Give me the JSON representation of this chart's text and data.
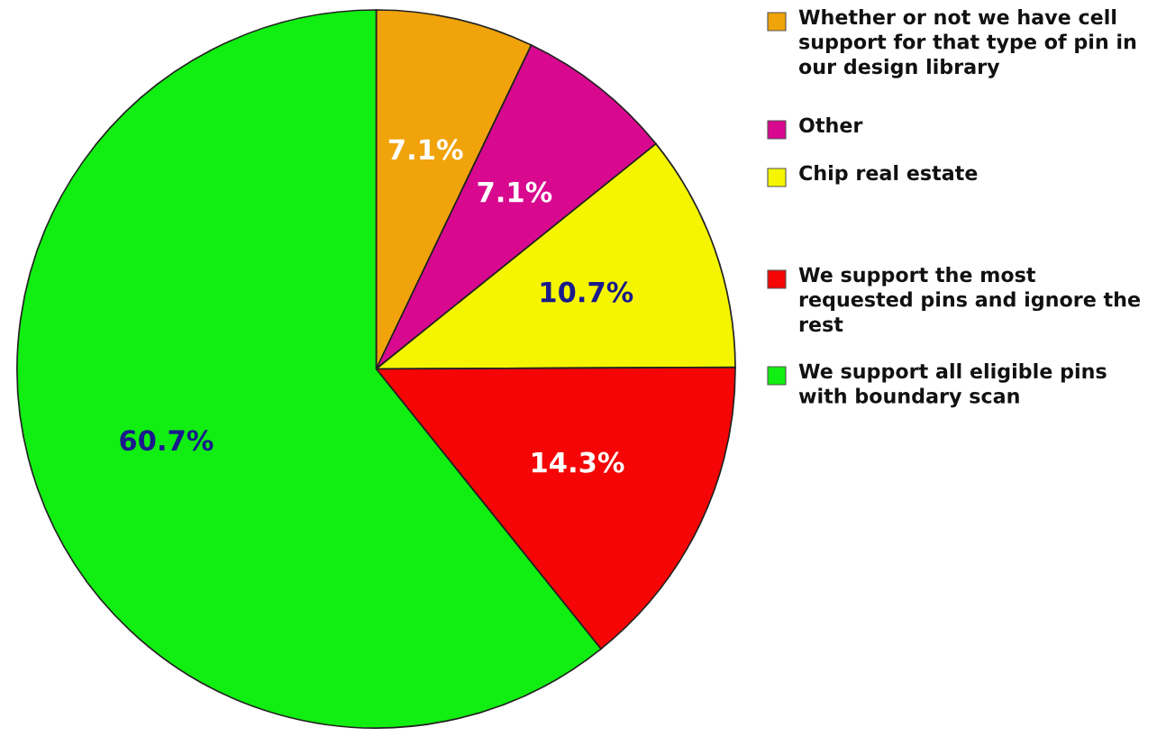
{
  "chart_data": {
    "type": "pie",
    "categories": [
      "Whether or not we have cell support for that type of pin in our design library",
      "Other",
      "Chip real estate",
      "We support the most requested pins and ignore the rest",
      "We support all eligible pins with boundary scan"
    ],
    "values": [
      7.1,
      7.1,
      10.7,
      14.3,
      60.7
    ],
    "value_labels": [
      "7.1%",
      "7.1%",
      "10.7%",
      "14.3%",
      "60.7%"
    ],
    "colors": [
      "#f0a30a",
      "#d8088f",
      "#f5f500",
      "#f50505",
      "#11ee11"
    ],
    "legend": "right"
  }
}
